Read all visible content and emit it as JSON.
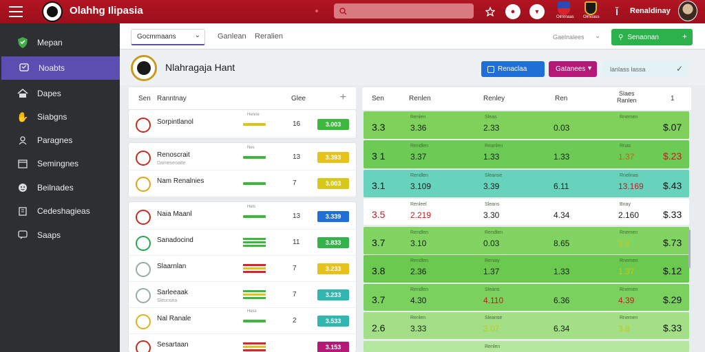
{
  "topbar": {
    "app_title": "Olahhg Ilipasia",
    "search_placeholder": "",
    "user_name": "Renaldinay",
    "club_caps": [
      "Olmmaas",
      "Olmoass"
    ]
  },
  "sidebar": {
    "items": [
      {
        "label": "Mepan",
        "icon": "shield-icon"
      },
      {
        "label": "Noabts",
        "icon": "chat-icon"
      },
      {
        "label": "Dapes",
        "icon": "home-icon"
      },
      {
        "label": "Siabgns",
        "icon": "hand-icon"
      },
      {
        "label": "Paragnes",
        "icon": "user-icon"
      },
      {
        "label": "Semingnes",
        "icon": "calendar-icon"
      },
      {
        "label": "Beilnades",
        "icon": "smiley-icon"
      },
      {
        "label": "Cedeshagieas",
        "icon": "building-icon"
      },
      {
        "label": "Saaps",
        "icon": "chat-bubble-icon"
      }
    ]
  },
  "subbar": {
    "select_value": "Gocmmaans",
    "tabs": [
      "Ganlean",
      "Reralien"
    ],
    "right_text": "Gaelnalees",
    "green_button": "Senaonan"
  },
  "titlerow": {
    "title": "Nlahragaja Hant",
    "blue_button": "Renaclaa",
    "purple_button": "Gatanees",
    "filter_text": "lanlass  lassa"
  },
  "left_table": {
    "headers": {
      "col1": "Sen",
      "col2": "Ranntnay",
      "col3": "Glee"
    },
    "rows": [
      {
        "name": "Sorpintlanol",
        "sub": "",
        "form_cap": "Henne",
        "num": "16",
        "value": "3.003",
        "pill_color": "#3cb83c",
        "form_color": "#e0c21a"
      },
      {
        "name": "Renoscrait",
        "sub": "Dameseoatte",
        "form_cap": "Nes",
        "num": "13",
        "value": "3.393",
        "pill_color": "#e6c21b",
        "form_color": "#3cb83c"
      },
      {
        "name": "Nam Renalnies",
        "sub": "",
        "form_cap": "",
        "num": "7",
        "value": "3.003",
        "pill_color": "#d8c81a",
        "form_color": "#3cb83c"
      },
      {
        "name": "Naia Maanl",
        "sub": "",
        "form_cap": "Hels",
        "num": "13",
        "value": "3.339",
        "pill_color": "#1f6fd6",
        "form_color": "#3cb83c"
      },
      {
        "name": "Sanadocind",
        "sub": "",
        "form_cap": "",
        "num": "11",
        "value": "3.833",
        "pill_color": "#34b34a",
        "form_color": "multi-green"
      },
      {
        "name": "Slaarnlan",
        "sub": "",
        "form_cap": "",
        "num": "7",
        "value": "3.233",
        "pill_color": "#e6c21b",
        "form_color": "multi-red"
      },
      {
        "name": "Sarleeaak",
        "sub": "Sleonsea",
        "form_cap": "",
        "num": "7",
        "value": "3.233",
        "pill_color": "#2fb7b0",
        "form_color": "multi-yellow"
      },
      {
        "name": "Nal Ranale",
        "sub": "",
        "form_cap": "Hess",
        "num": "2",
        "value": "3.533",
        "pill_color": "#2fb7b0",
        "form_color": "#3cb83c"
      },
      {
        "name": "Sesartaan",
        "sub": "",
        "form_cap": "",
        "num": "",
        "value": "3.153",
        "pill_color": "#b51978",
        "form_color": "multi-red"
      }
    ]
  },
  "right_table": {
    "headers": {
      "col1": "Sen",
      "col2": "Renlen",
      "col3": "Renley",
      "col4": "Ren",
      "col5": "Slaes\nRanlen",
      "col6": "1"
    },
    "rows": [
      {
        "c1": "3.3",
        "cap2": "Renlen",
        "c2": "3.36",
        "cap3": "Sleas",
        "c3": "2.33",
        "c4": "0.03",
        "cap5": "Rnemen",
        "c5": "",
        "c6": "$.07",
        "bg": "#7fd15c"
      },
      {
        "c1": "3 1",
        "cap2": "Rendlen",
        "c2": "3.37",
        "cap3": "Reanlen",
        "c3": "1.33",
        "c4": "1.33",
        "cap5": "Rnas",
        "c5": "1.37",
        "c6": "$.23",
        "bg": "#6ccb54"
      },
      {
        "c1": "3.1",
        "cap2": "Rendlen",
        "c2": "3.109",
        "cap3": "Sleanse",
        "c3": "3.39",
        "c4": "6.11",
        "cap5": "Rnelinas",
        "c5": "13.169",
        "c6": "$.43",
        "bg": "#67d3bd"
      },
      {
        "c1": "3.5",
        "cap2": "Renleel",
        "c2": "2.219",
        "cap3": "Sleans",
        "c3": "3.30",
        "c4": "4.34",
        "cap5": "Bnay",
        "c5": "2.160",
        "c6": "$.33",
        "bg": "#ffffff"
      },
      {
        "c1": "3.7",
        "cap2": "Rendlen",
        "c2": "3.10",
        "cap3": "Rendlen",
        "c3": "0.03",
        "c4": "8.65",
        "cap5": "Rnemen",
        "c5": "3.8",
        "c6": "$.73",
        "bg": "#82d462"
      },
      {
        "c1": "3.8",
        "cap2": "Rendlen",
        "c2": "2.36",
        "cap3": "Reniay",
        "c3": "1.37",
        "c4": "1.33",
        "cap5": "Rnemen",
        "c5": "1.37",
        "c6": "$.12",
        "bg": "#6bc94f"
      },
      {
        "c1": "3.7",
        "cap2": "Rendlen",
        "c2": "4.30",
        "cap3": "Sleans",
        "c3": "4.110",
        "c4": "6.36",
        "cap5": "Rnemen",
        "c5": "4.39",
        "c6": "$.29",
        "bg": "#7ad15e"
      },
      {
        "c1": "2.6",
        "cap2": "Renlen",
        "c2": "3.33",
        "cap3": "Sleanse",
        "c3": "3.07",
        "c4": "6.34",
        "cap5": "Rnemen",
        "c5": "3.8",
        "c6": "$.33",
        "bg": "#a3df86"
      },
      {
        "c1": "",
        "cap2": "",
        "c2": "",
        "cap3": "Renlen",
        "c3": "",
        "c4": "",
        "cap5": "",
        "c5": "",
        "c6": "",
        "bg": "#b6e7a0"
      }
    ]
  }
}
